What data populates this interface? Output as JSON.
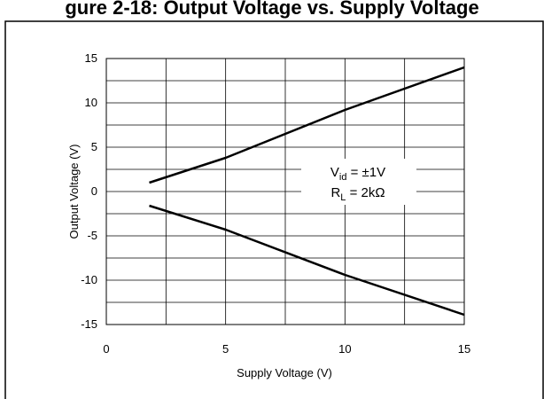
{
  "title_fragment": "gure 2-18: Output Voltage vs. Supply Voltage",
  "chart_data": {
    "type": "line",
    "title": "",
    "xlabel": "Supply Voltage (V)",
    "ylabel": "Output Voltage (V)",
    "xlim": [
      0,
      15
    ],
    "ylim": [
      -15,
      15
    ],
    "xticks": [
      "0",
      "5",
      "10",
      "15"
    ],
    "yticks": [
      "15",
      "10",
      "5",
      "0",
      "-5",
      "-10",
      "-15"
    ],
    "grid": true,
    "series": [
      {
        "values": [
          [
            1.8,
            1.0
          ],
          [
            5,
            3.8
          ],
          [
            10,
            9.2
          ],
          [
            15,
            14.0
          ]
        ]
      },
      {
        "values": [
          [
            1.8,
            -1.6
          ],
          [
            5,
            -4.3
          ],
          [
            10,
            -9.4
          ],
          [
            15,
            -13.9
          ]
        ]
      }
    ],
    "annotation": {
      "line1_main": "V",
      "line1_sub": "id",
      "line1_rest": " = ±1V",
      "line2_main": "R",
      "line2_sub": "L",
      "line2_rest": " = 2kΩ"
    },
    "line_color": "#000000",
    "grid_color": "#000000"
  }
}
